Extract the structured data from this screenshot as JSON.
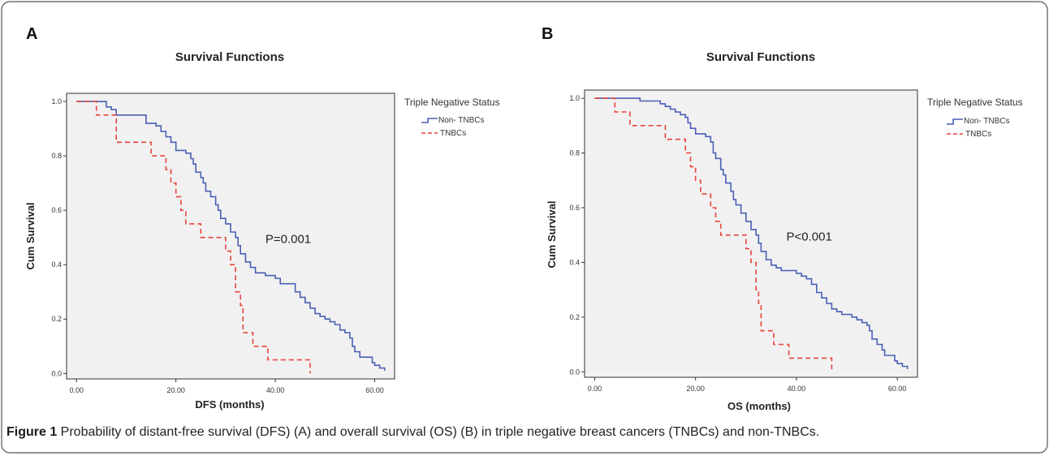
{
  "caption": {
    "label": "Figure 1",
    "text": " Probability of distant-free survival (DFS) (A) and overall survival (OS) (B) in triple negative breast cancers (TNBCs) and non-TNBCs."
  },
  "colors": {
    "non_tnbc": "#4a5fb5",
    "tnbc": "#e8423b",
    "plot_bg": "#f1f1f1",
    "frame": "#333333"
  },
  "chart_data": [
    {
      "type": "line",
      "panel_label": "A",
      "title": "Survival Functions",
      "xlabel": "DFS (months)",
      "ylabel": "Cum Survival",
      "xlim": [
        -2,
        64
      ],
      "ylim": [
        -0.02,
        1.03
      ],
      "x_ticks": [
        0,
        20,
        40,
        60
      ],
      "x_tick_labels": [
        "0.00",
        "20.00",
        "40.00",
        "60.00"
      ],
      "y_ticks": [
        0,
        0.2,
        0.4,
        0.6,
        0.8,
        1.0
      ],
      "y_tick_labels": [
        "0.0",
        "0.2",
        "0.4",
        "0.6",
        "0.8",
        "1.0"
      ],
      "annotation": {
        "text": "P=0.001",
        "x": 38,
        "y": 0.48
      },
      "legend": {
        "title": "Triple Negative Status",
        "position": "right"
      },
      "series": [
        {
          "name": "Non- TNBCs",
          "style": "solid",
          "color": "#4a5fb5",
          "points": [
            [
              0,
              1.0
            ],
            [
              5,
              1.0
            ],
            [
              6,
              0.98
            ],
            [
              7,
              0.97
            ],
            [
              8,
              0.95
            ],
            [
              10,
              0.95
            ],
            [
              13,
              0.95
            ],
            [
              14,
              0.92
            ],
            [
              16,
              0.91
            ],
            [
              17,
              0.89
            ],
            [
              18,
              0.87
            ],
            [
              19,
              0.85
            ],
            [
              20,
              0.82
            ],
            [
              22,
              0.81
            ],
            [
              23,
              0.79
            ],
            [
              23.5,
              0.77
            ],
            [
              24,
              0.74
            ],
            [
              25,
              0.72
            ],
            [
              25.5,
              0.7
            ],
            [
              26,
              0.67
            ],
            [
              27,
              0.65
            ],
            [
              28,
              0.62
            ],
            [
              28.5,
              0.6
            ],
            [
              29,
              0.57
            ],
            [
              30,
              0.55
            ],
            [
              31,
              0.52
            ],
            [
              32,
              0.5
            ],
            [
              32.5,
              0.47
            ],
            [
              33,
              0.44
            ],
            [
              34,
              0.41
            ],
            [
              35,
              0.39
            ],
            [
              36,
              0.37
            ],
            [
              38,
              0.36
            ],
            [
              40,
              0.35
            ],
            [
              41,
              0.33
            ],
            [
              43,
              0.33
            ],
            [
              44,
              0.3
            ],
            [
              45,
              0.28
            ],
            [
              46,
              0.26
            ],
            [
              47,
              0.24
            ],
            [
              48,
              0.22
            ],
            [
              49,
              0.21
            ],
            [
              50,
              0.2
            ],
            [
              51,
              0.19
            ],
            [
              52,
              0.18
            ],
            [
              53,
              0.16
            ],
            [
              54,
              0.15
            ],
            [
              55,
              0.13
            ],
            [
              55.5,
              0.1
            ],
            [
              56,
              0.08
            ],
            [
              57,
              0.06
            ],
            [
              59,
              0.06
            ],
            [
              59.5,
              0.04
            ],
            [
              60,
              0.03
            ],
            [
              61,
              0.02
            ],
            [
              62,
              0.01
            ]
          ]
        },
        {
          "name": "TNBCs",
          "style": "dashed",
          "color": "#e8423b",
          "points": [
            [
              0,
              1.0
            ],
            [
              3,
              1.0
            ],
            [
              4,
              0.95
            ],
            [
              7,
              0.95
            ],
            [
              8,
              0.85
            ],
            [
              14,
              0.85
            ],
            [
              15,
              0.8
            ],
            [
              17,
              0.8
            ],
            [
              18,
              0.75
            ],
            [
              19,
              0.7
            ],
            [
              20,
              0.65
            ],
            [
              21,
              0.6
            ],
            [
              22,
              0.55
            ],
            [
              24,
              0.55
            ],
            [
              25,
              0.5
            ],
            [
              29,
              0.5
            ],
            [
              30,
              0.45
            ],
            [
              31,
              0.4
            ],
            [
              32,
              0.3
            ],
            [
              33,
              0.25
            ],
            [
              33.5,
              0.15
            ],
            [
              35,
              0.15
            ],
            [
              35.5,
              0.1
            ],
            [
              38,
              0.1
            ],
            [
              38.5,
              0.05
            ],
            [
              47,
              0.05
            ],
            [
              47,
              0.0
            ]
          ]
        }
      ]
    },
    {
      "type": "line",
      "panel_label": "B",
      "title": "Survival Functions",
      "xlabel": "OS (months)",
      "ylabel": "Cum Survival",
      "xlim": [
        -2,
        64
      ],
      "ylim": [
        -0.02,
        1.03
      ],
      "x_ticks": [
        0,
        20,
        40,
        60
      ],
      "x_tick_labels": [
        "0.00",
        "20.00",
        "40.00",
        "60.00"
      ],
      "y_ticks": [
        0,
        0.2,
        0.4,
        0.6,
        0.8,
        1.0
      ],
      "y_tick_labels": [
        "0.0",
        "0.2",
        "0.4",
        "0.6",
        "0.8",
        "1.0"
      ],
      "annotation": {
        "text": "P<0.001",
        "x": 38,
        "y": 0.48
      },
      "legend": {
        "title": "Triple Negative Status",
        "position": "right"
      },
      "series": [
        {
          "name": "Non- TNBCs",
          "style": "solid",
          "color": "#4a5fb5",
          "points": [
            [
              0,
              1.0
            ],
            [
              8,
              1.0
            ],
            [
              9,
              0.99
            ],
            [
              12,
              0.99
            ],
            [
              13,
              0.98
            ],
            [
              14,
              0.97
            ],
            [
              15,
              0.96
            ],
            [
              16,
              0.95
            ],
            [
              17,
              0.94
            ],
            [
              18,
              0.93
            ],
            [
              18.5,
              0.91
            ],
            [
              19,
              0.89
            ],
            [
              20,
              0.87
            ],
            [
              22,
              0.86
            ],
            [
              23,
              0.84
            ],
            [
              23.5,
              0.8
            ],
            [
              24,
              0.78
            ],
            [
              25,
              0.74
            ],
            [
              25.5,
              0.72
            ],
            [
              26,
              0.69
            ],
            [
              27,
              0.66
            ],
            [
              27.5,
              0.63
            ],
            [
              28,
              0.61
            ],
            [
              29,
              0.58
            ],
            [
              30,
              0.55
            ],
            [
              31,
              0.52
            ],
            [
              32,
              0.5
            ],
            [
              32.5,
              0.47
            ],
            [
              33,
              0.44
            ],
            [
              34,
              0.41
            ],
            [
              35,
              0.39
            ],
            [
              36,
              0.38
            ],
            [
              37,
              0.37
            ],
            [
              39,
              0.37
            ],
            [
              40,
              0.36
            ],
            [
              41,
              0.35
            ],
            [
              42,
              0.34
            ],
            [
              43,
              0.32
            ],
            [
              44,
              0.29
            ],
            [
              45,
              0.27
            ],
            [
              46,
              0.25
            ],
            [
              47,
              0.23
            ],
            [
              48,
              0.22
            ],
            [
              49,
              0.21
            ],
            [
              51,
              0.2
            ],
            [
              52,
              0.19
            ],
            [
              53,
              0.18
            ],
            [
              54,
              0.17
            ],
            [
              54.5,
              0.15
            ],
            [
              55,
              0.12
            ],
            [
              56,
              0.1
            ],
            [
              57,
              0.08
            ],
            [
              57.5,
              0.06
            ],
            [
              59,
              0.06
            ],
            [
              59.5,
              0.04
            ],
            [
              60,
              0.03
            ],
            [
              61,
              0.02
            ],
            [
              62,
              0.01
            ]
          ]
        },
        {
          "name": "TNBCs",
          "style": "dashed",
          "color": "#e8423b",
          "points": [
            [
              0,
              1.0
            ],
            [
              3,
              1.0
            ],
            [
              4,
              0.95
            ],
            [
              6,
              0.95
            ],
            [
              7,
              0.9
            ],
            [
              13,
              0.9
            ],
            [
              14,
              0.85
            ],
            [
              17,
              0.85
            ],
            [
              18,
              0.8
            ],
            [
              19,
              0.75
            ],
            [
              20,
              0.7
            ],
            [
              21,
              0.65
            ],
            [
              22,
              0.65
            ],
            [
              23,
              0.6
            ],
            [
              24,
              0.55
            ],
            [
              25,
              0.5
            ],
            [
              29,
              0.5
            ],
            [
              30,
              0.45
            ],
            [
              31,
              0.4
            ],
            [
              32,
              0.3
            ],
            [
              32.5,
              0.25
            ],
            [
              33,
              0.15
            ],
            [
              35,
              0.15
            ],
            [
              35.5,
              0.1
            ],
            [
              38,
              0.1
            ],
            [
              38.5,
              0.05
            ],
            [
              47,
              0.05
            ],
            [
              47,
              0.0
            ]
          ]
        }
      ]
    }
  ]
}
